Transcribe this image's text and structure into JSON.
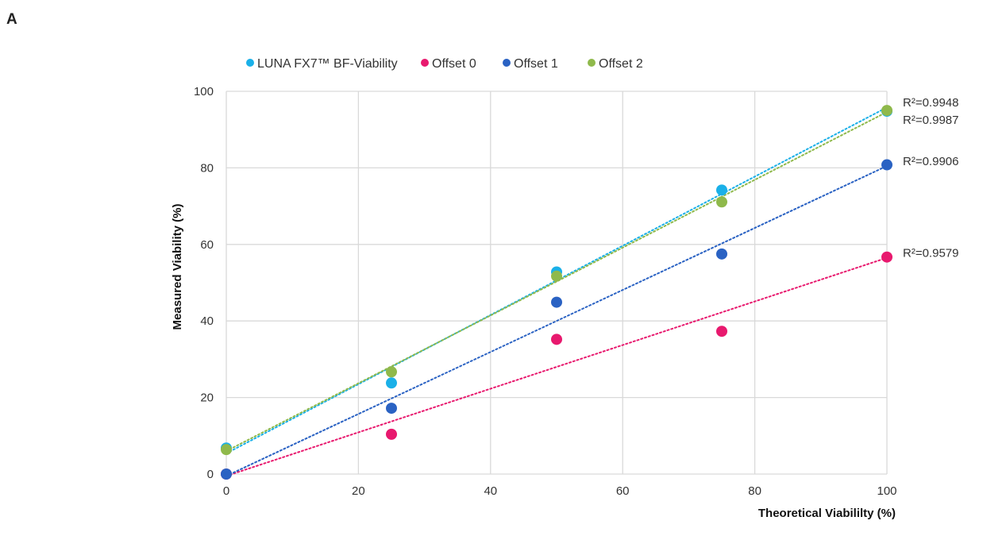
{
  "panel_label": "A",
  "chart_data": {
    "type": "scatter",
    "xlabel": "Theoretical Viabililty (%)",
    "ylabel": "Measured Viability (%)",
    "xlim": [
      0,
      100
    ],
    "ylim": [
      0,
      100
    ],
    "xticks": [
      0,
      20,
      40,
      60,
      80,
      100
    ],
    "yticks": [
      0,
      20,
      40,
      60,
      80,
      100
    ],
    "grid": true,
    "legend_position": "top",
    "series": [
      {
        "name": "LUNA FX7™ BF-Viability",
        "color": "#1ab0e8",
        "x": [
          0,
          25,
          50,
          75,
          100
        ],
        "y": [
          6.8,
          23.8,
          52.8,
          74.2,
          94.8
        ],
        "trendline": [
          5.4,
          95.8
        ],
        "r2": "R²=0.9948"
      },
      {
        "name": "Offset 0",
        "color": "#e8196e",
        "x": [
          0,
          25,
          50,
          75,
          100
        ],
        "y": [
          0,
          10.4,
          35.2,
          37.3,
          56.7
        ],
        "trendline": [
          -0.5,
          56.5
        ],
        "r2": "R²=0.9579"
      },
      {
        "name": "Offset 1",
        "color": "#2a62c3",
        "x": [
          0,
          25,
          50,
          75,
          100
        ],
        "y": [
          0,
          17.2,
          44.9,
          57.5,
          80.8
        ],
        "trendline": [
          -0.5,
          80.5
        ],
        "r2": "R²=0.9906"
      },
      {
        "name": "Offset 2",
        "color": "#8fb94b",
        "x": [
          0,
          25,
          50,
          75,
          100
        ],
        "y": [
          6.4,
          26.7,
          51.7,
          71.1,
          95.0
        ],
        "trendline": [
          6.0,
          94.6
        ],
        "r2": "R²=0.9987"
      }
    ]
  }
}
